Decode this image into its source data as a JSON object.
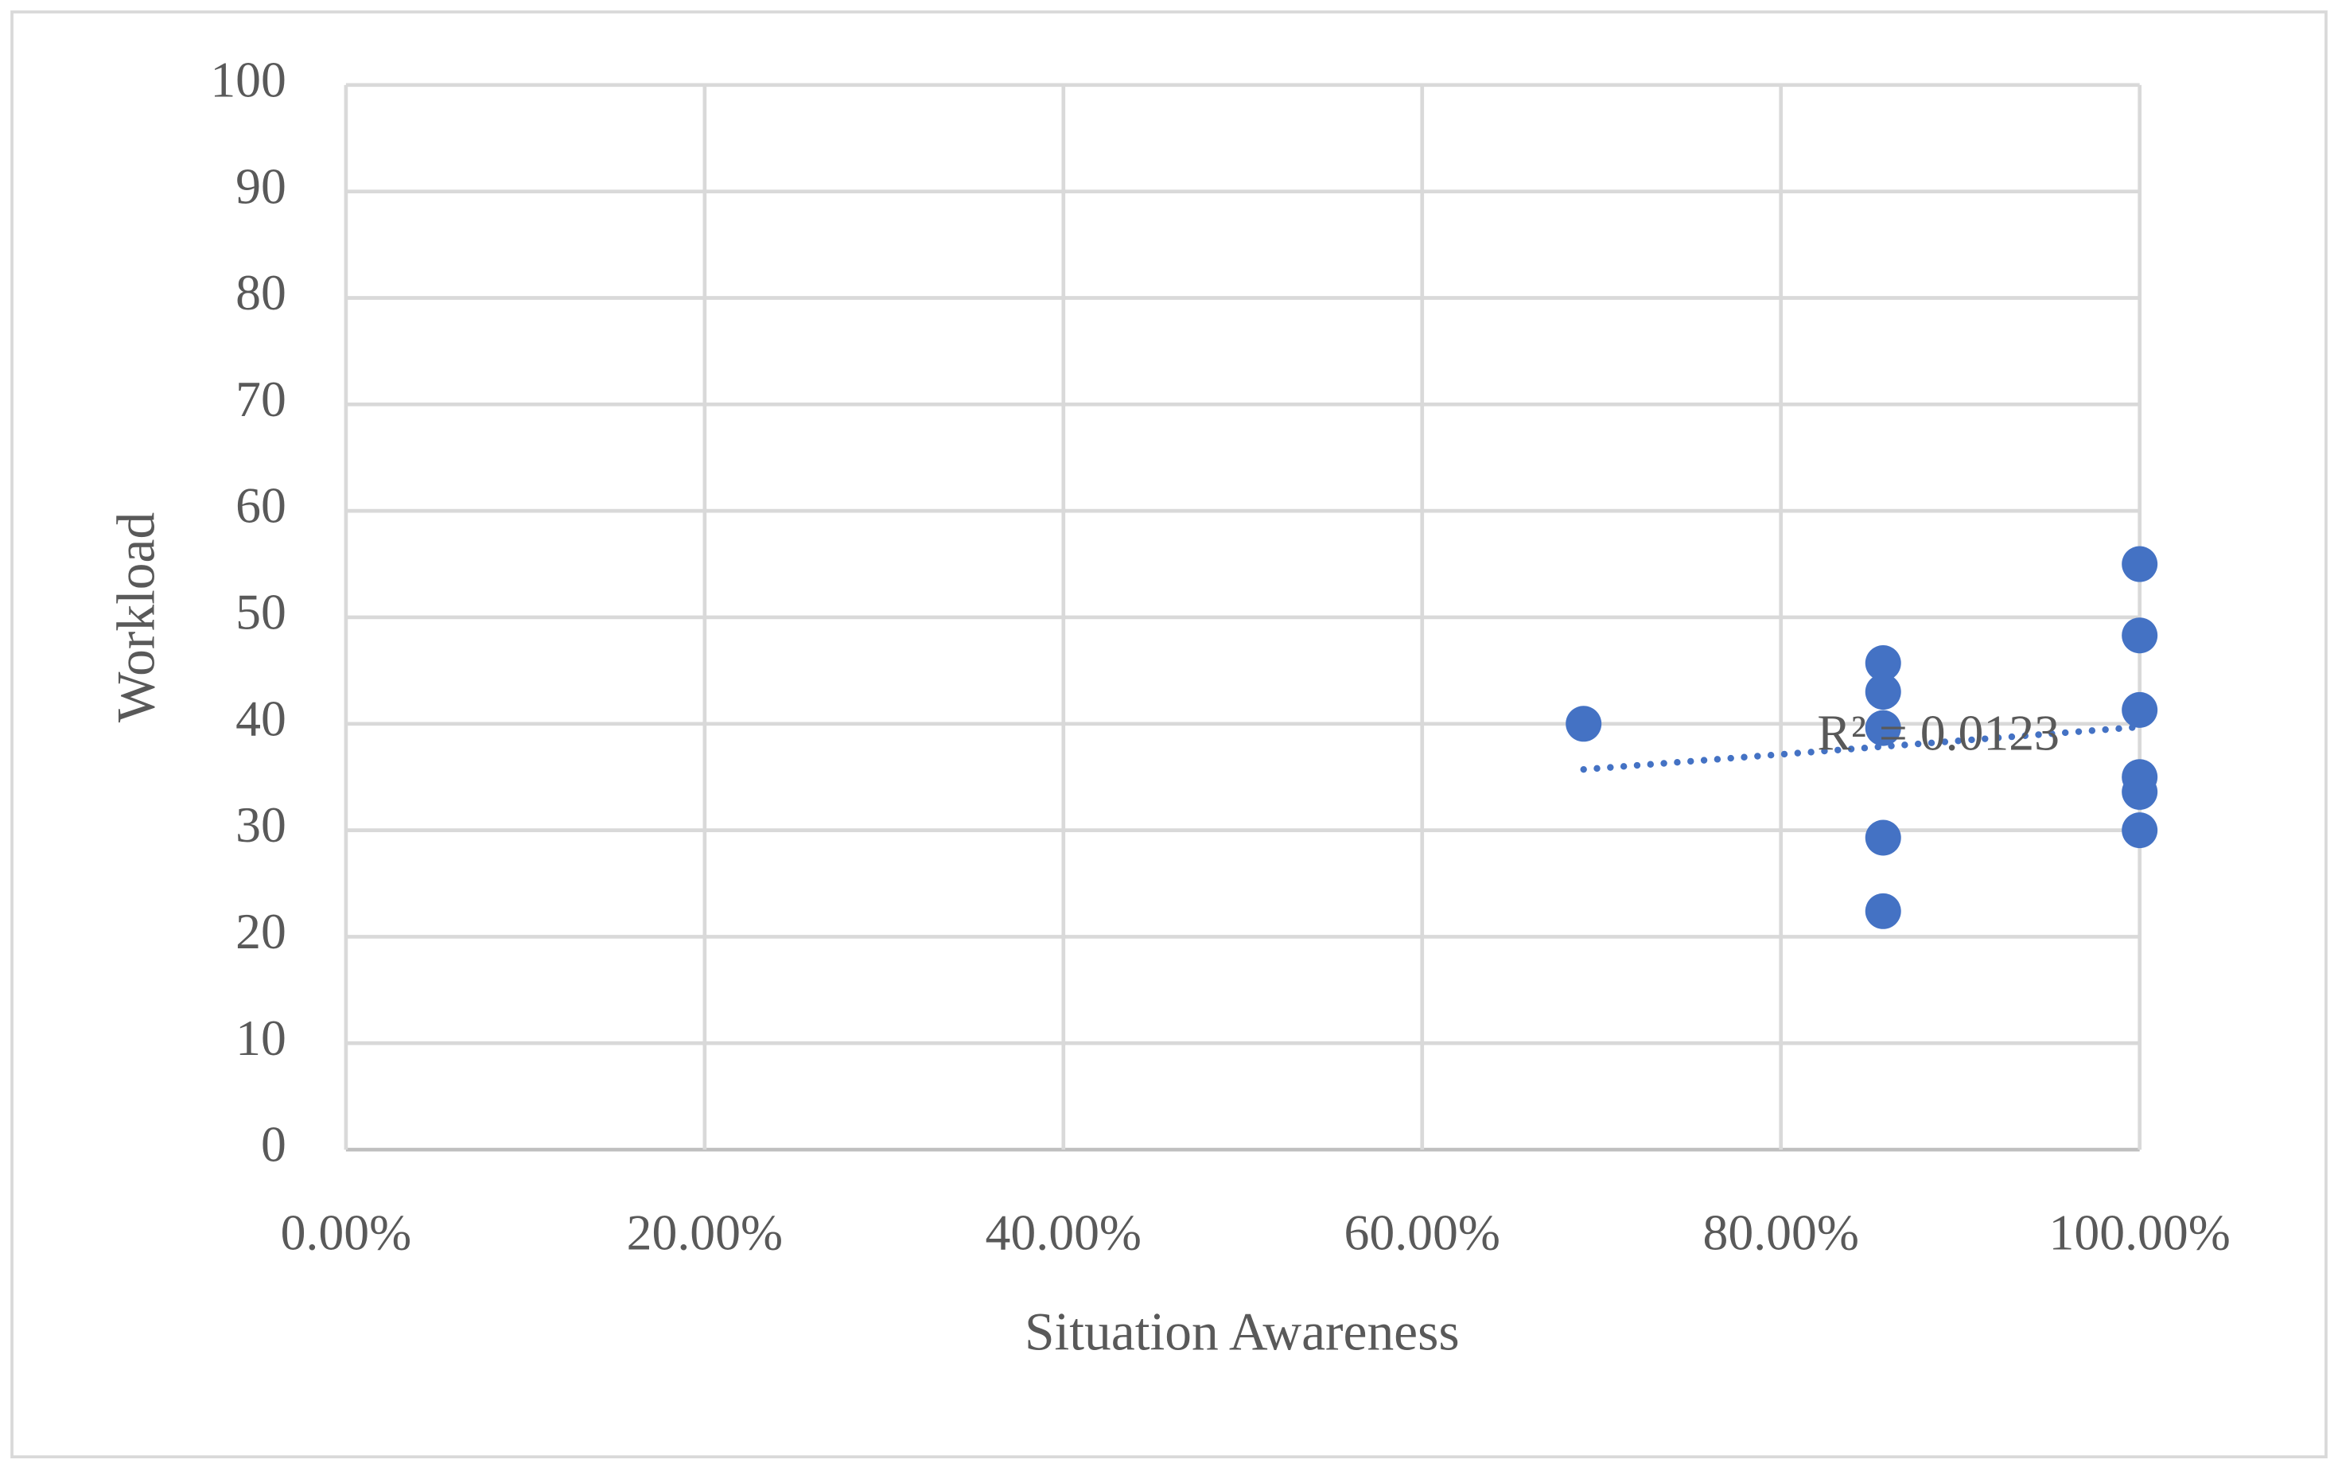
{
  "chart_data": {
    "type": "scatter",
    "x_label": "Situation Awareness",
    "y_label": "Workload",
    "annotation": "R² = 0.0123",
    "series": [
      {
        "name": "Workload",
        "color": "#4472c4",
        "x": [
          69.0,
          85.7,
          85.7,
          85.7,
          85.7,
          85.7,
          100,
          100,
          100,
          100,
          100,
          100
        ],
        "values": [
          40,
          45.7,
          43.0,
          39.6,
          29.3,
          22.4,
          55.0,
          48.3,
          41.3,
          35.0,
          33.6,
          30.0
        ]
      }
    ],
    "trendline": "linear",
    "xlim": [
      0,
      100
    ],
    "xticks": [
      {
        "value": 0,
        "label": "0.00%"
      },
      {
        "value": 20,
        "label": "20.00%"
      },
      {
        "value": 40,
        "label": "40.00%"
      },
      {
        "value": 60,
        "label": "60.00%"
      },
      {
        "value": 80,
        "label": "80.00%"
      },
      {
        "value": 100,
        "label": "100.00%"
      }
    ],
    "ylim": [
      0,
      100
    ],
    "yticks": [
      0,
      10,
      20,
      30,
      40,
      50,
      60,
      70,
      80,
      90,
      100
    ],
    "grid": true
  }
}
